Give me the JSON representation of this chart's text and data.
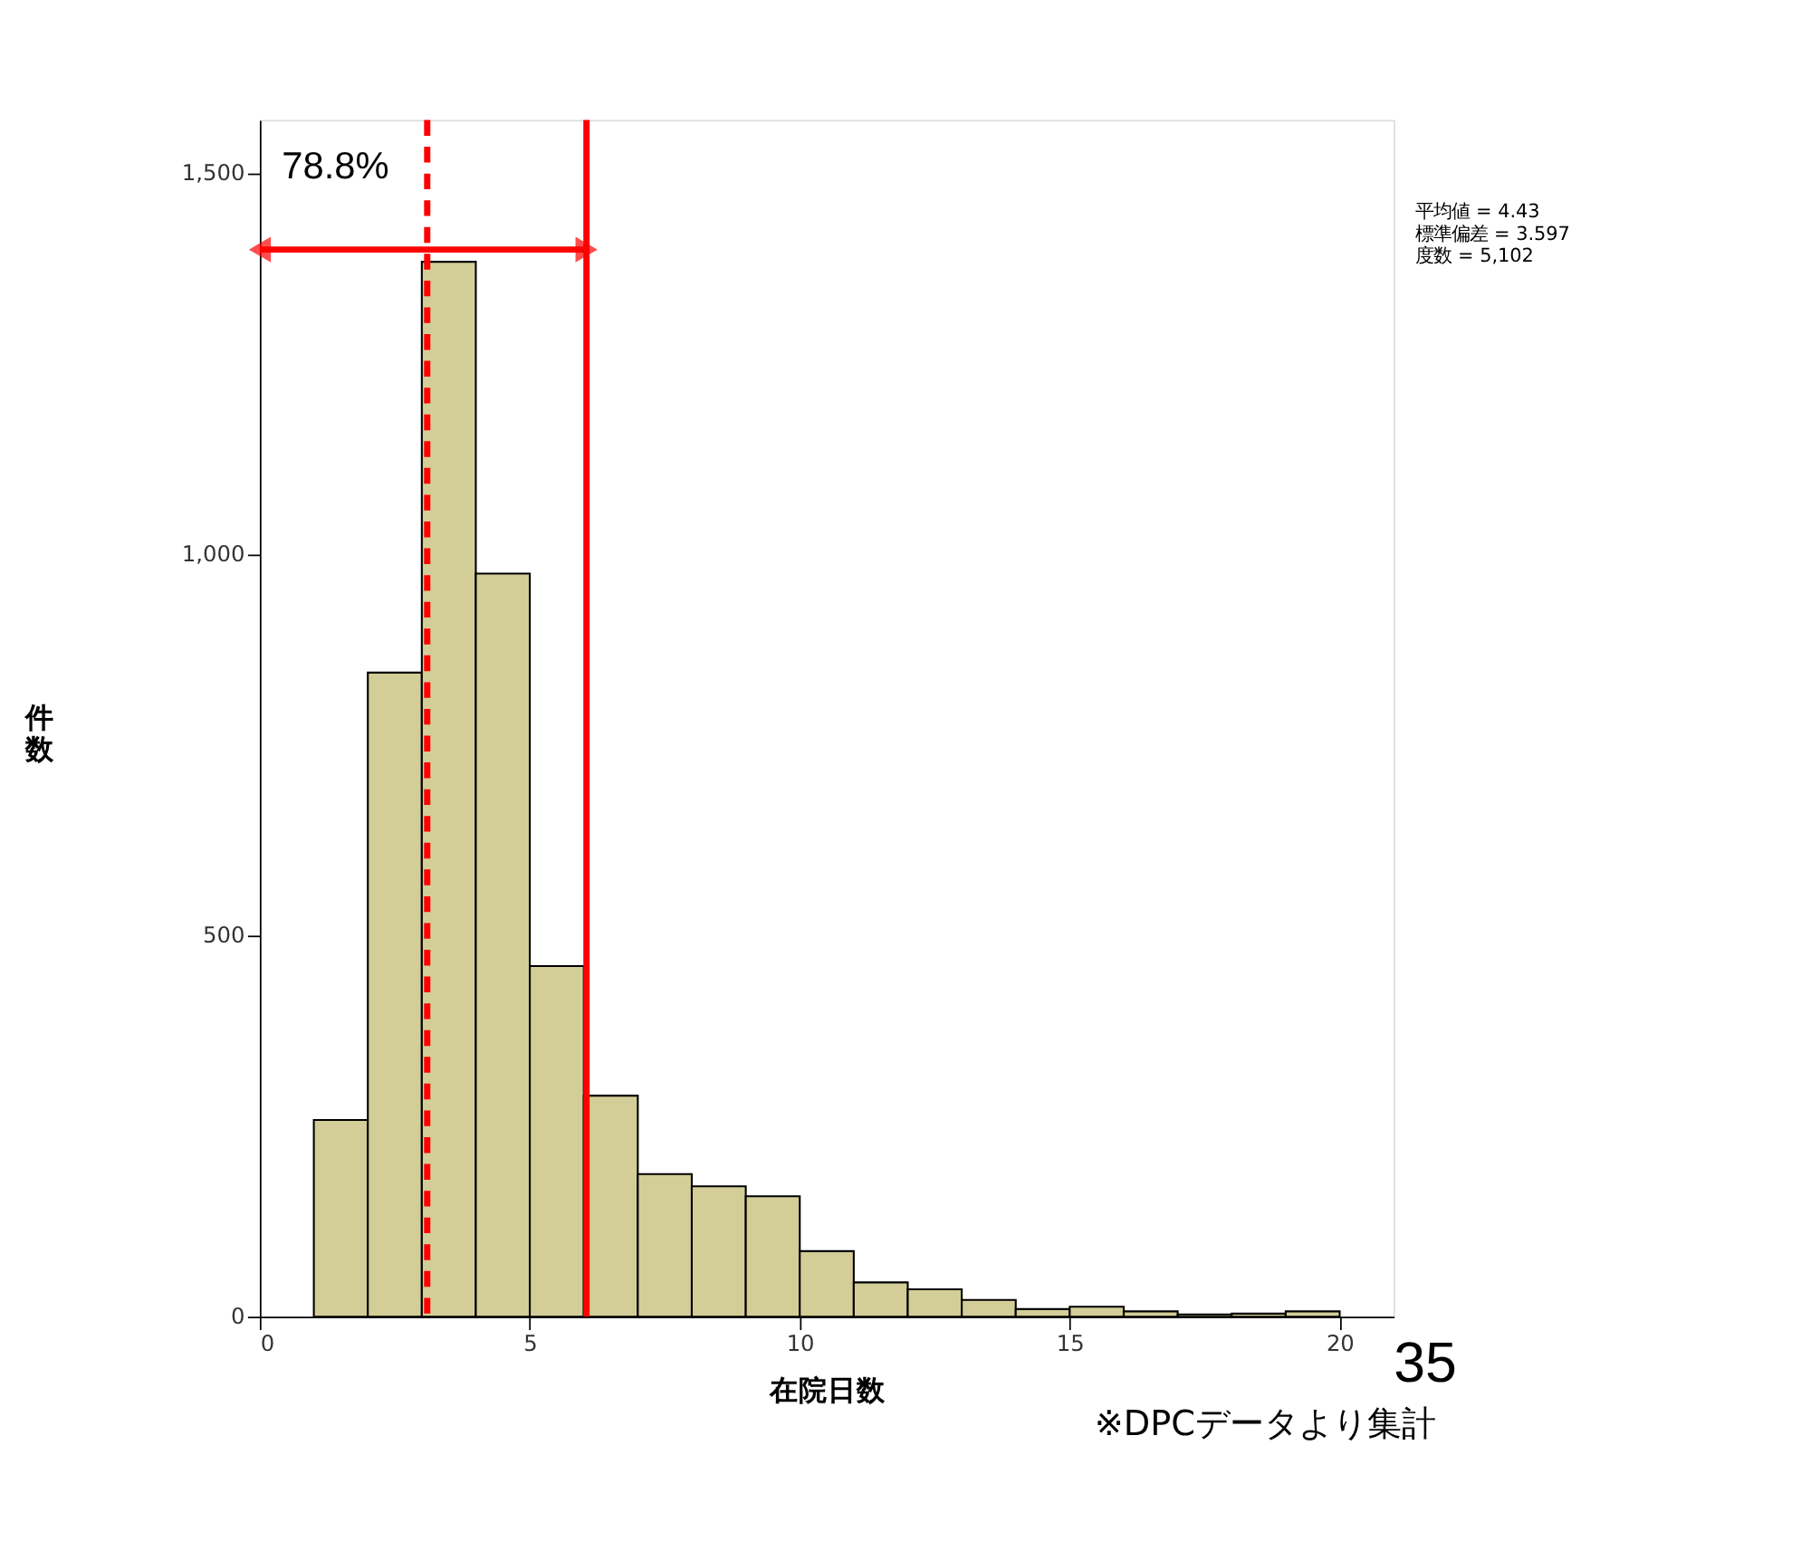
{
  "chart_data": {
    "type": "histogram",
    "xlabel": "在院日数",
    "ylabel": "件数",
    "bins": [
      1,
      2,
      3,
      4,
      5,
      6,
      7,
      8,
      9,
      10,
      11,
      12,
      13,
      14,
      15,
      16,
      17,
      18,
      19,
      20
    ],
    "values": [
      258,
      845,
      1384,
      975,
      460,
      290,
      187,
      171,
      158,
      86,
      45,
      36,
      22,
      10,
      13,
      7,
      3,
      4,
      7
    ],
    "color": "#d3ce97",
    "xlim": [
      0,
      21
    ],
    "xticks": [
      0,
      5,
      10,
      15,
      20
    ],
    "ylim": [
      0,
      1570
    ],
    "yticks": [
      0,
      500,
      {
        "value": 1000,
        "label": "1,000"
      },
      {
        "value": 1500,
        "label": "1,500"
      }
    ],
    "grid": false,
    "ref_lines": [
      {
        "axis": "x",
        "value": 3.1,
        "color": "#ff0000",
        "line_style": "dashed"
      },
      {
        "axis": "x",
        "value": 6.05,
        "color": "#ff0000",
        "line_style": "solid"
      }
    ],
    "annotations": [
      {
        "text": "78.8%",
        "x": 0,
        "y": 1400
      },
      "平均値 = 4.43",
      "標準偏差 = 3.597",
      "度数 = 5,102",
      "35",
      "※DPCデータより集計"
    ]
  }
}
